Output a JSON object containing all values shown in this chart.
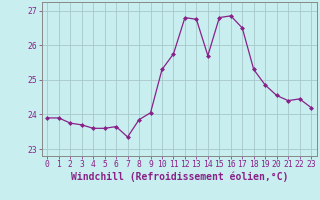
{
  "x": [
    0,
    1,
    2,
    3,
    4,
    5,
    6,
    7,
    8,
    9,
    10,
    11,
    12,
    13,
    14,
    15,
    16,
    17,
    18,
    19,
    20,
    21,
    22,
    23
  ],
  "y": [
    23.9,
    23.9,
    23.75,
    23.7,
    23.6,
    23.6,
    23.65,
    23.35,
    23.85,
    24.05,
    25.3,
    25.75,
    26.8,
    26.75,
    25.7,
    26.8,
    26.85,
    26.5,
    25.3,
    24.85,
    24.55,
    24.4,
    24.45,
    24.2
  ],
  "line_color": "#882288",
  "marker_color": "#882288",
  "bg_color": "#C8EEF0",
  "grid_color": "#A8C8CA",
  "xlabel": "Windchill (Refroidissement éolien,°C)",
  "ylabel_ticks": [
    23,
    24,
    25,
    26,
    27
  ],
  "xticks": [
    0,
    1,
    2,
    3,
    4,
    5,
    6,
    7,
    8,
    9,
    10,
    11,
    12,
    13,
    14,
    15,
    16,
    17,
    18,
    19,
    20,
    21,
    22,
    23
  ],
  "xlim": [
    -0.5,
    23.5
  ],
  "ylim": [
    22.8,
    27.25
  ],
  "xlabel_color": "#882288",
  "tick_color": "#882288",
  "label_fontsize": 7.0,
  "tick_fontsize": 5.8,
  "spine_color": "#888888"
}
